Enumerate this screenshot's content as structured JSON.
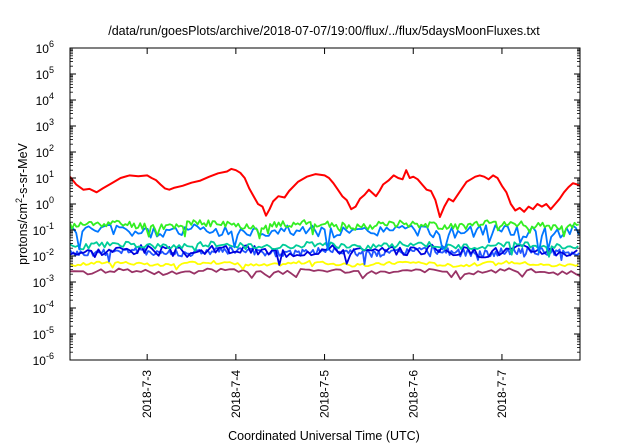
{
  "chart_data": {
    "type": "line",
    "title": "/data/run/goesPlots/archive/2018-07-07/19:00/flux/../flux/5daysMoonFluxes.txt",
    "xlabel": "Coordinated Universal Time (UTC)",
    "ylabel": {
      "base": "protons/cm",
      "sup": "2",
      "rest": "-s-sr-MeV"
    },
    "y_scale": "log",
    "ylim_exp": [
      -6,
      6
    ],
    "y_ticks": [
      {
        "exp": "-6"
      },
      {
        "exp": "-5"
      },
      {
        "exp": "-4"
      },
      {
        "exp": "-3"
      },
      {
        "exp": "-2"
      },
      {
        "exp": "-1"
      },
      {
        "exp": "0"
      },
      {
        "exp": "1"
      },
      {
        "exp": "2"
      },
      {
        "exp": "3"
      },
      {
        "exp": "4"
      },
      {
        "exp": "5"
      },
      {
        "exp": "6"
      }
    ],
    "y_tick_base": "10",
    "x_range_days": [
      "2018-07-02 03:00",
      "2018-07-07 21:00"
    ],
    "x_ticks": [
      "2018-7-3",
      "2018-7-4",
      "2018-7-5",
      "2018-7-6",
      "2018-7-7"
    ],
    "x_tick_days": [
      1,
      2,
      3,
      4,
      5
    ],
    "x_start_offset_days": 0.13,
    "x_end_offset_days": 5.88,
    "grid": false,
    "legend": "none",
    "series": [
      {
        "color": "#ff0000",
        "points": [
          [
            0.13,
            1.05
          ],
          [
            0.2,
            0.75
          ],
          [
            0.28,
            0.55
          ],
          [
            0.35,
            0.58
          ],
          [
            0.43,
            0.45
          ],
          [
            0.5,
            0.6
          ],
          [
            0.6,
            0.8
          ],
          [
            0.7,
            1.0
          ],
          [
            0.8,
            1.1
          ],
          [
            0.9,
            1.07
          ],
          [
            1.0,
            1.1
          ],
          [
            1.05,
            1.0
          ],
          [
            1.1,
            0.92
          ],
          [
            1.15,
            0.75
          ],
          [
            1.2,
            0.6
          ],
          [
            1.25,
            0.55
          ],
          [
            1.3,
            0.62
          ],
          [
            1.4,
            0.7
          ],
          [
            1.5,
            0.82
          ],
          [
            1.6,
            0.9
          ],
          [
            1.7,
            1.05
          ],
          [
            1.8,
            1.18
          ],
          [
            1.9,
            1.25
          ],
          [
            1.95,
            1.35
          ],
          [
            2.0,
            1.3
          ],
          [
            2.05,
            1.2
          ],
          [
            2.1,
            1.0
          ],
          [
            2.15,
            0.6
          ],
          [
            2.2,
            0.3
          ],
          [
            2.25,
            0.0
          ],
          [
            2.3,
            -0.1
          ],
          [
            2.34,
            -0.45
          ],
          [
            2.38,
            -0.2
          ],
          [
            2.42,
            0.1
          ],
          [
            2.48,
            0.3
          ],
          [
            2.55,
            0.25
          ],
          [
            2.6,
            0.5
          ],
          [
            2.7,
            0.85
          ],
          [
            2.8,
            1.05
          ],
          [
            2.9,
            1.15
          ],
          [
            3.0,
            1.1
          ],
          [
            3.05,
            1.0
          ],
          [
            3.1,
            0.8
          ],
          [
            3.15,
            0.55
          ],
          [
            3.2,
            0.3
          ],
          [
            3.25,
            0.15
          ],
          [
            3.3,
            -0.2
          ],
          [
            3.35,
            -0.1
          ],
          [
            3.4,
            0.2
          ],
          [
            3.45,
            0.35
          ],
          [
            3.5,
            0.55
          ],
          [
            3.58,
            0.3
          ],
          [
            3.62,
            0.5
          ],
          [
            3.66,
            0.75
          ],
          [
            3.72,
            0.9
          ],
          [
            3.78,
            1.1
          ],
          [
            3.83,
            1.0
          ],
          [
            3.88,
            0.95
          ],
          [
            3.92,
            1.3
          ],
          [
            3.96,
            1.0
          ],
          [
            4.0,
            1.05
          ],
          [
            4.05,
            0.95
          ],
          [
            4.1,
            0.75
          ],
          [
            4.15,
            0.55
          ],
          [
            4.2,
            0.5
          ],
          [
            4.25,
            0.15
          ],
          [
            4.3,
            -0.5
          ],
          [
            4.35,
            -0.1
          ],
          [
            4.4,
            0.2
          ],
          [
            4.45,
            0.1
          ],
          [
            4.5,
            0.35
          ],
          [
            4.55,
            0.6
          ],
          [
            4.6,
            0.85
          ],
          [
            4.65,
            0.95
          ],
          [
            4.7,
            1.05
          ],
          [
            4.75,
            1.1
          ],
          [
            4.8,
            1.05
          ],
          [
            4.85,
            0.95
          ],
          [
            4.9,
            1.1
          ],
          [
            4.95,
            1.0
          ],
          [
            5.0,
            0.7
          ],
          [
            5.05,
            0.45
          ],
          [
            5.1,
            0.0
          ],
          [
            5.15,
            -0.25
          ],
          [
            5.2,
            -0.15
          ],
          [
            5.25,
            -0.3
          ],
          [
            5.3,
            -0.1
          ],
          [
            5.35,
            -0.2
          ],
          [
            5.4,
            0.0
          ],
          [
            5.45,
            -0.1
          ],
          [
            5.5,
            0.0
          ],
          [
            5.55,
            -0.2
          ],
          [
            5.6,
            0.0
          ],
          [
            5.65,
            0.2
          ],
          [
            5.7,
            0.45
          ],
          [
            5.75,
            0.65
          ],
          [
            5.8,
            0.8
          ],
          [
            5.85,
            0.75
          ],
          [
            5.88,
            0.7
          ]
        ]
      },
      {
        "color": "#33ee22",
        "base": -0.8,
        "amp": 0.14,
        "period": 0.024,
        "seed": 11
      },
      {
        "color": "#0077ff",
        "base": -1.05,
        "amp": 0.22,
        "period": 0.035,
        "seed": 5
      },
      {
        "color": "#00cc99",
        "base": -1.6,
        "amp": 0.12,
        "period": 0.03,
        "seed": 23
      },
      {
        "color": "#0000dd",
        "base": -1.8,
        "amp": 0.2,
        "period": 0.04,
        "seed": 3
      },
      {
        "color": "#2255ff",
        "base": -1.85,
        "amp": 0.14,
        "period": 0.02,
        "seed": 41
      },
      {
        "color": "#ffff00",
        "base": -2.3,
        "amp": 0.06,
        "period": 0.03,
        "seed": 17
      },
      {
        "color": "#993366",
        "base": -2.6,
        "amp": 0.08,
        "period": 0.05,
        "seed": 29
      }
    ]
  }
}
